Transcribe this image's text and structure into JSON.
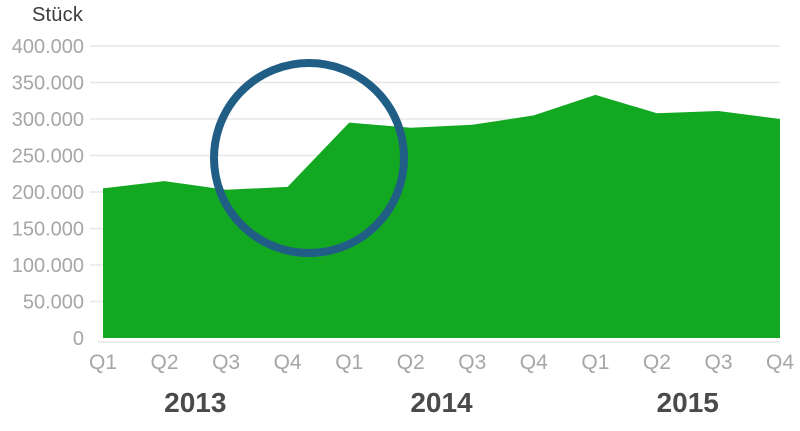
{
  "chart_data": {
    "type": "area",
    "title": "",
    "ylabel": "Stück",
    "quarter_labels": [
      "Q1",
      "Q2",
      "Q3",
      "Q4",
      "Q1",
      "Q2",
      "Q3",
      "Q4",
      "Q1",
      "Q2",
      "Q3",
      "Q4"
    ],
    "year_labels": [
      "2013",
      "2014",
      "2015"
    ],
    "values": [
      205000,
      215000,
      203000,
      207000,
      295000,
      288000,
      292000,
      305000,
      333000,
      308000,
      311000,
      300000
    ],
    "ylim": [
      0,
      400000
    ],
    "ytick_interval": 50000,
    "ytick_labels_bottom_to_top": [
      "0",
      "50.000",
      "100.000",
      "150.000",
      "200.000",
      "250.000",
      "300.000",
      "350.000",
      "400.000"
    ],
    "grid": true,
    "legend": "none",
    "annotation": {
      "shape": "circle",
      "highlights": "jump between Q4 2013 and Q1 2014",
      "cx": 309,
      "cy": 158,
      "r": 95,
      "stroke_width": 8
    },
    "colors": {
      "area": "#12A822",
      "grid": "#E7E7E7",
      "tick_text": "#A6A6A6",
      "year_text": "#4A4A4A",
      "unit_text": "#3C3C3C",
      "annotation": "#215E86"
    }
  }
}
